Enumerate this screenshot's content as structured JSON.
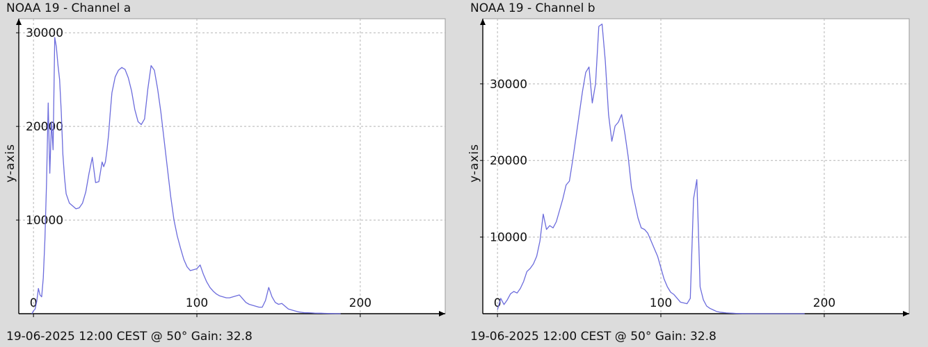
{
  "chart_data": [
    {
      "type": "line",
      "title": "NOAA 19 - Channel a",
      "footer": "19-06-2025 12:00 CEST @ 50° Gain: 32.8",
      "xlabel": "",
      "ylabel": "y-axis",
      "xlim": [
        -9,
        252
      ],
      "ylim": [
        0,
        31500
      ],
      "xticks": [
        0,
        100,
        200
      ],
      "yticks": [
        10000,
        20000,
        30000
      ],
      "xtick_labels": [
        "0",
        "100",
        "200"
      ],
      "ytick_labels": [
        "10000",
        "20000",
        "30000"
      ],
      "grid": true,
      "color": "#6b6bdc",
      "series": [
        {
          "x": [
            -1,
            0,
            1,
            2,
            3,
            4,
            5,
            6,
            7,
            8,
            9,
            10,
            11,
            12,
            13,
            14,
            15,
            16,
            17,
            18,
            19,
            20,
            22,
            24,
            26,
            28,
            30,
            32,
            34,
            36,
            38,
            40,
            42,
            43,
            44,
            45,
            46,
            47,
            48,
            50,
            52,
            54,
            56,
            58,
            60,
            62,
            64,
            66,
            68,
            70,
            72,
            74,
            76,
            78,
            80,
            82,
            84,
            86,
            88,
            90,
            92,
            94,
            96,
            98,
            100,
            102,
            104,
            106,
            108,
            110,
            112,
            114,
            116,
            118,
            120,
            122,
            124,
            126,
            128,
            130,
            132,
            134,
            136,
            138,
            140,
            142,
            144,
            146,
            148,
            150,
            152,
            154,
            156,
            158,
            160,
            162,
            164,
            166,
            168,
            170,
            172,
            174,
            176,
            178,
            180,
            182,
            185,
            188
          ],
          "y": [
            0,
            300,
            500,
            1300,
            2700,
            2000,
            1800,
            3800,
            8000,
            14000,
            22500,
            15000,
            20500,
            17500,
            29500,
            28500,
            26500,
            25000,
            21500,
            17000,
            14500,
            12800,
            11800,
            11500,
            11200,
            11300,
            11800,
            13000,
            15000,
            16700,
            14000,
            14100,
            16200,
            15700,
            16200,
            17500,
            19200,
            21500,
            23600,
            25300,
            26000,
            26300,
            26100,
            25200,
            23800,
            21800,
            20500,
            20200,
            20800,
            24000,
            26500,
            26000,
            24000,
            21500,
            18500,
            15500,
            12500,
            10000,
            8300,
            7000,
            5800,
            5000,
            4600,
            4700,
            4800,
            5200,
            4200,
            3400,
            2800,
            2400,
            2100,
            1900,
            1800,
            1700,
            1700,
            1800,
            1900,
            2000,
            1600,
            1200,
            1000,
            900,
            800,
            700,
            700,
            1400,
            2800,
            1800,
            1200,
            1000,
            1100,
            800,
            500,
            400,
            300,
            200,
            150,
            100,
            100,
            80,
            60,
            50,
            50,
            40,
            30,
            20,
            10,
            0
          ]
        }
      ]
    },
    {
      "type": "line",
      "title": "NOAA 19 - Channel b",
      "footer": "19-06-2025 12:00 CEST @ 50° Gain: 32.8",
      "xlabel": "",
      "ylabel": "y-axis",
      "xlim": [
        -9,
        252
      ],
      "ylim": [
        0,
        38500
      ],
      "xticks": [
        0,
        100,
        200
      ],
      "yticks": [
        10000,
        20000,
        30000
      ],
      "xtick_labels": [
        "0",
        "100",
        "200"
      ],
      "ytick_labels": [
        "10000",
        "20000",
        "30000"
      ],
      "grid": true,
      "color": "#6b6bdc",
      "series": [
        {
          "x": [
            0,
            2,
            4,
            6,
            8,
            10,
            12,
            14,
            16,
            18,
            20,
            22,
            24,
            26,
            28,
            30,
            32,
            34,
            36,
            38,
            40,
            42,
            44,
            46,
            48,
            50,
            52,
            54,
            56,
            58,
            60,
            62,
            64,
            66,
            68,
            70,
            72,
            74,
            76,
            78,
            80,
            82,
            84,
            86,
            88,
            90,
            92,
            94,
            96,
            98,
            100,
            102,
            104,
            106,
            108,
            110,
            112,
            114,
            116,
            118,
            120,
            122,
            124,
            126,
            128,
            130,
            132,
            134,
            136,
            138,
            140,
            142,
            144,
            146,
            148,
            150,
            152,
            154,
            156,
            158,
            160,
            162,
            164,
            166,
            168,
            170,
            172,
            174,
            176,
            178,
            180,
            182,
            184,
            186,
            188
          ],
          "y": [
            500,
            2000,
            1200,
            1800,
            2600,
            2900,
            2700,
            3300,
            4200,
            5500,
            5900,
            6500,
            7500,
            9500,
            13000,
            11000,
            11500,
            11200,
            12000,
            13500,
            15000,
            16800,
            17300,
            20000,
            23000,
            26000,
            29000,
            31500,
            32200,
            27500,
            30000,
            37500,
            37800,
            33000,
            26000,
            22500,
            24500,
            25000,
            26000,
            23500,
            20500,
            16500,
            14500,
            12500,
            11200,
            11000,
            10500,
            9500,
            8500,
            7500,
            6000,
            4500,
            3500,
            2800,
            2500,
            2000,
            1500,
            1400,
            1300,
            2000,
            15000,
            17500,
            3500,
            1800,
            1000,
            700,
            500,
            300,
            200,
            150,
            100,
            80,
            60,
            40,
            30,
            20,
            10,
            0,
            0,
            0,
            0,
            0,
            0,
            0,
            0,
            0,
            0,
            0,
            0,
            0,
            0,
            0,
            0,
            0,
            0
          ]
        }
      ]
    }
  ]
}
